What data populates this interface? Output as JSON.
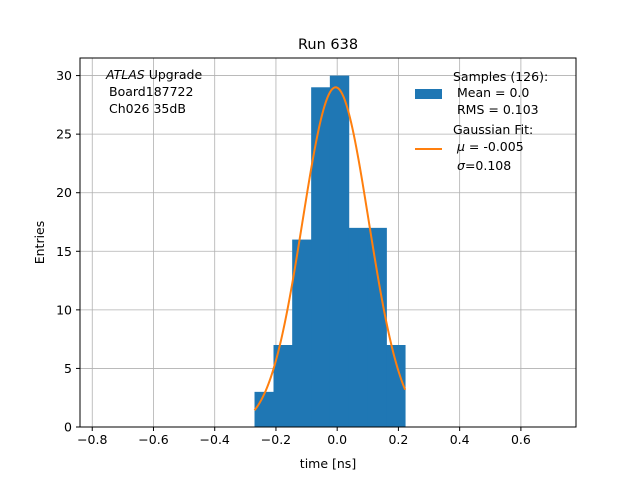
{
  "chart_data": {
    "type": "bar",
    "title": "Run 638",
    "xlabel": "time [ns]",
    "ylabel": "Entries",
    "xlim": [
      -0.84,
      0.78
    ],
    "ylim": [
      0,
      31.5
    ],
    "xticks": [
      -0.8,
      -0.6,
      -0.4,
      -0.2,
      0.0,
      0.2,
      0.4,
      0.6
    ],
    "xtick_labels": [
      "−0.8",
      "−0.6",
      "−0.4",
      "−0.2",
      "0.0",
      "0.2",
      "0.4",
      "0.6"
    ],
    "yticks": [
      0,
      5,
      10,
      15,
      20,
      25,
      30
    ],
    "yticks_labels": [
      "0",
      "5",
      "10",
      "15",
      "20",
      "25",
      "30"
    ],
    "grid": true,
    "histogram": {
      "edges": [
        -0.27,
        -0.208,
        -0.147,
        -0.085,
        -0.024,
        0.038,
        0.099,
        0.161,
        0.222
      ],
      "counts": [
        3,
        7,
        16,
        29,
        30,
        17,
        17,
        7
      ],
      "color": "#1f77b4"
    },
    "fit": {
      "mu": -0.005,
      "sigma": 0.108,
      "amplitude": 29.0,
      "x_range": [
        -0.27,
        0.222
      ],
      "color": "#ff7f0e"
    },
    "annotation": {
      "line1_italic": "ATLAS",
      "line1_rest": " Upgrade",
      "line2": "Board187722",
      "line3": "Ch026 35dB"
    },
    "legend": {
      "placement": "top-right",
      "hist_line1": "Samples (126):",
      "hist_line2": "Mean = 0.0",
      "hist_line3": "RMS = 0.103",
      "fit_line1": "Gaussian Fit:",
      "fit_line2_symbol": "μ",
      "fit_line2_rest": " = -0.005",
      "fit_line3_symbol": "σ",
      "fit_line3_rest": "=0.108"
    }
  }
}
